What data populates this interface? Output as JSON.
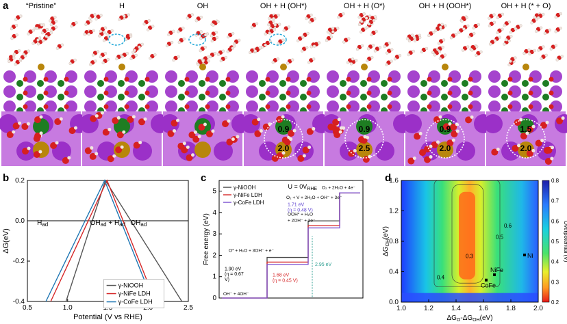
{
  "panel_labels": [
    "a",
    "b",
    "c",
    "d"
  ],
  "panel_a": {
    "titles": [
      "“Pristine”",
      "H<sub>ad</sub>",
      "OH<sub>ad</sub>",
      "OH<sub>ad</sub> + H<sub>ad</sub> (OH*)",
      "OH<sub>ad</sub> + H<sub>ad</sub> (O*)",
      "OH<sub>ad</sub> + H<sub>ad</sub> (OOH*)",
      "OH<sub>ad</sub> + H<sub>ad</sub> (* + O<sub>2</sub>)"
    ],
    "bottom_labels": [
      {
        "panel": 3,
        "top": "0.9",
        "bottom": "2.0"
      },
      {
        "panel": 4,
        "top": "0.9",
        "bottom": "2.5"
      },
      {
        "panel": 5,
        "top": "0.9",
        "bottom": "2.0"
      },
      {
        "panel": 6,
        "top": "1.5",
        "bottom": "2.0"
      }
    ],
    "colors": {
      "water_o": "#d62020",
      "h": "#f1e6e0",
      "k": "#9b30c8",
      "ni": "#1e7d22",
      "fe": "#b8860b",
      "highlight": "#20a8d8"
    }
  },
  "chart_data": [
    {
      "panel": "b",
      "type": "line",
      "xlabel": "Potential (V vs RHE)",
      "ylabel": "ΔG(eV)",
      "xlim": [
        0.5,
        2.5
      ],
      "ylim": [
        -0.4,
        0.2
      ],
      "xticks": [
        "0.5",
        "1.0",
        "1.5",
        "2.0",
        "2.5"
      ],
      "yticks": [
        "-0.4",
        "-0.2",
        "0.0",
        "0.2"
      ],
      "region_labels": [
        "H<tspan font-size='8' dy='2'>ad</tspan>",
        "OH<tspan font-size='8' dy='2'>ad</tspan><tspan dy='-2'> + H</tspan><tspan font-size='8' dy='2'>ad</tspan>",
        "OH<tspan font-size='8' dy='2'>ad</tspan>"
      ],
      "series": [
        {
          "name": "γ-NiOOH",
          "color": "#555555",
          "x": [
            0.98,
            1.47,
            2.42
          ],
          "y": [
            -0.4,
            0.2,
            -0.4
          ]
        },
        {
          "name": "γ-NiFe LDH",
          "color": "#d62728",
          "x": [
            0.79,
            1.49,
            2.09
          ],
          "y": [
            -0.4,
            0.2,
            -0.4
          ]
        },
        {
          "name": "γ-CoFe LDH",
          "color": "#1f77b4",
          "x": [
            0.73,
            1.46,
            2.06
          ],
          "y": [
            -0.4,
            0.2,
            -0.4
          ]
        }
      ],
      "legend": "bottom-right"
    },
    {
      "panel": "c",
      "type": "line",
      "title": "U = 0V<tspan font-size='7' dy='2'>RHE</tspan>",
      "ylabel": "Free energy (eV)",
      "ylim": [
        0,
        5.5
      ],
      "yticks": [
        "0",
        "1",
        "2",
        "3",
        "4",
        "5"
      ],
      "series": [
        {
          "name": "γ-NiOOH",
          "color": "#444444",
          "levels": [
            0,
            1.9,
            3.61,
            4.92
          ]
        },
        {
          "name": "γ-NiFe LDH",
          "color": "#d62728",
          "levels": [
            0,
            1.68,
            3.39,
            4.92
          ]
        },
        {
          "name": "γ-CoFe LDH",
          "color": "#7a4fd0",
          "levels": [
            0,
            1.57,
            3.28,
            4.92
          ]
        }
      ],
      "step_labels": [
        "OH⁻ + 4OH⁻",
        "O* + H₂O + 3OH⁻ + e⁻",
        "OOH* + H₂O",
        "+ 2OH⁻ + 2e⁻",
        "O₂ + V + 2H₂O + OH⁻ + 3e⁻",
        "O₂ + 2H₂O + 4e⁻"
      ],
      "annotations": [
        {
          "text": "1.90 eV",
          "color": "#000000"
        },
        {
          "text": "(η = 0.67",
          "color": "#000000"
        },
        {
          "text": "V)",
          "color": "#000000"
        },
        {
          "text": "1.68 eV",
          "color": "#d62728"
        },
        {
          "text": "(η = 0.45 V)",
          "color": "#d62728"
        },
        {
          "text": "1.71 eV",
          "color": "#5b3fd0"
        },
        {
          "text": "(η = 0.48 V)",
          "color": "#5b3fd0"
        },
        {
          "text": "2.95 eV",
          "color": "#2a9d8f"
        }
      ],
      "legend": "top-left"
    },
    {
      "panel": "d",
      "type": "heatmap",
      "xlabel": "ΔG<tspan font-size='7' dy='2'>O</tspan><tspan dy='-2'>-ΔG</tspan><tspan font-size='7' dy='2'>OH</tspan><tspan dy='-2'>(eV)</tspan>",
      "ylabel": "ΔG<tspan font-size='7' dy='2'>OH</tspan><tspan dy='-2'>(eV)</tspan>",
      "xlim": [
        1.0,
        2.0
      ],
      "ylim": [
        0.0,
        1.6
      ],
      "xticks": [
        "1.0",
        "1.2",
        "1.4",
        "1.6",
        "1.8",
        "2.0"
      ],
      "yticks": [
        "0.0",
        "0.4",
        "0.8",
        "1.2",
        "1.6"
      ],
      "colorbar": {
        "label": "Overpotential (V)",
        "ticks": [
          "0.8",
          "0.7",
          "0.6",
          "0.5",
          "0.4",
          "0.3",
          "0.2"
        ],
        "range": [
          0.2,
          0.8
        ]
      },
      "contour_labels": [
        "0.6",
        "0.5",
        "0.4",
        "0.3"
      ],
      "points": [
        {
          "label": "Ni",
          "x": 1.9,
          "y": 0.62
        },
        {
          "label": "NiFe",
          "x": 1.68,
          "y": 0.36
        },
        {
          "label": "CoFe",
          "x": 1.62,
          "y": 0.29
        }
      ]
    }
  ]
}
